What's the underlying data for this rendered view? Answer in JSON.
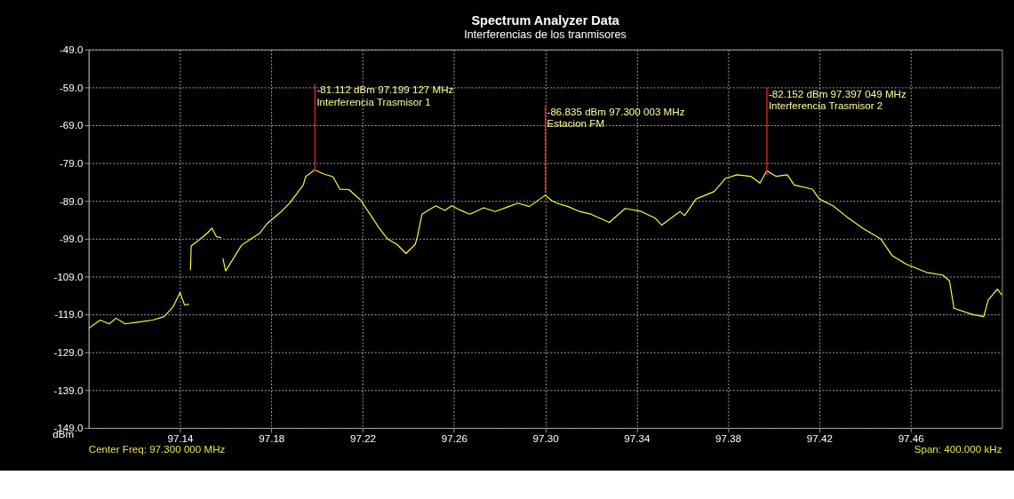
{
  "chart_data": {
    "type": "line",
    "title": "Spectrum Analyzer Data",
    "subtitle": "Interferencias de los tranmisores",
    "ylabel": "dBm",
    "x": [
      97.1,
      97.105,
      97.109,
      97.112,
      97.116,
      97.122,
      97.128,
      97.133,
      97.137,
      97.14,
      97.142,
      97.144,
      97.1443,
      97.1446,
      97.1449,
      97.148,
      97.152,
      97.154,
      97.156,
      97.158,
      97.1585,
      97.1588,
      97.16,
      97.167,
      97.171,
      97.175,
      97.178,
      97.184,
      97.188,
      97.194,
      97.195,
      97.199,
      97.203,
      97.207,
      97.21,
      97.214,
      97.219,
      97.224,
      97.227,
      97.231,
      97.235,
      97.239,
      97.243,
      97.244,
      97.246,
      97.252,
      97.256,
      97.259,
      97.263,
      97.267,
      97.273,
      97.278,
      97.284,
      97.288,
      97.293,
      97.3,
      97.303,
      97.305,
      97.31,
      97.315,
      97.32,
      97.328,
      97.335,
      97.342,
      97.348,
      97.351,
      97.359,
      97.361,
      97.366,
      97.374,
      97.379,
      97.384,
      97.39,
      97.394,
      97.397,
      97.401,
      97.406,
      97.409,
      97.417,
      97.42,
      97.426,
      97.432,
      97.439,
      97.447,
      97.452,
      97.458,
      97.467,
      97.474,
      97.477,
      97.479,
      97.487,
      97.492,
      97.494,
      97.498,
      97.5
    ],
    "series": [
      {
        "color": "#ffff33",
        "values": [
          -122.7,
          -120.5,
          -121.5,
          -120,
          -121.5,
          -121,
          -120.5,
          -119.6,
          -117,
          -113.2,
          -116.5,
          -116.3,
          null,
          -107.3,
          -100.9,
          -99.5,
          -97.5,
          -96.2,
          -98.5,
          -98.7,
          null,
          -104.2,
          -107.5,
          -100.7,
          -99.1,
          -97.5,
          -95.1,
          -92,
          -89.6,
          -84.8,
          -82.6,
          -80.8,
          -81.9,
          -82.6,
          -85.9,
          -86,
          -88.7,
          -93.2,
          -96,
          -99.1,
          -100.5,
          -102.9,
          -100.5,
          -98.4,
          -92.5,
          -90.3,
          -91.5,
          -90.3,
          -91.5,
          -92.5,
          -90.8,
          -91.8,
          -90.5,
          -89.6,
          -90.5,
          -87.5,
          -89,
          -89.6,
          -90.5,
          -91.8,
          -92.5,
          -94.7,
          -91,
          -91.8,
          -93.5,
          -95.4,
          -91.8,
          -92.9,
          -88.5,
          -86.5,
          -83,
          -82.1,
          -82.5,
          -84.3,
          -81,
          -82.5,
          -82.1,
          -84.8,
          -85.9,
          -88.5,
          -90.3,
          -93.2,
          -96.2,
          -99.1,
          -103.5,
          -105.7,
          -107.9,
          -108.6,
          -110.1,
          -117.4,
          -119,
          -119.6,
          -115.2,
          -112.3,
          -113.9
        ]
      }
    ],
    "xlim": [
      97.1,
      97.5
    ],
    "xticks": [
      97.14,
      97.18,
      97.22,
      97.26,
      {
        "value": 97.3,
        "label": "97.30"
      },
      97.34,
      97.38,
      97.42,
      97.46
    ],
    "ylim": [
      -149,
      -49
    ],
    "yticks": [
      {
        "value": -49,
        "label": "-49.0"
      },
      {
        "value": -59,
        "label": "-59.0"
      },
      {
        "value": -69,
        "label": "-69.0"
      },
      {
        "value": -79,
        "label": "-79.0"
      },
      {
        "value": -89,
        "label": "-89.0"
      },
      {
        "value": -99,
        "label": "-99.0"
      },
      {
        "value": -109,
        "label": "-109.0"
      },
      {
        "value": -119,
        "label": "-119.0"
      },
      {
        "value": -129,
        "label": "-129.0"
      },
      {
        "value": -139,
        "label": "-139.0"
      },
      {
        "value": -149,
        "label": "-149.0"
      }
    ],
    "grid": true,
    "legend": false,
    "marker": "none",
    "line_style": "solid",
    "annotations": [
      {
        "text": "-81.112 dBm 97.199 127 MHz\nInterferencia Trasmisor 1",
        "x": 97.199127,
        "y": -81.112
      },
      {
        "text": "-86.835 dBm 97.300 003 MHz\nEstacion FM",
        "x": 97.300003,
        "y": -86.835
      },
      {
        "text": "-82.152 dBm 97.397 049 MHz\nInterferencia Trasmisor 2",
        "x": 97.397049,
        "y": -82.152
      },
      "Center Freq: 97.300 000 MHz",
      "Span: 400.000 kHz"
    ]
  }
}
